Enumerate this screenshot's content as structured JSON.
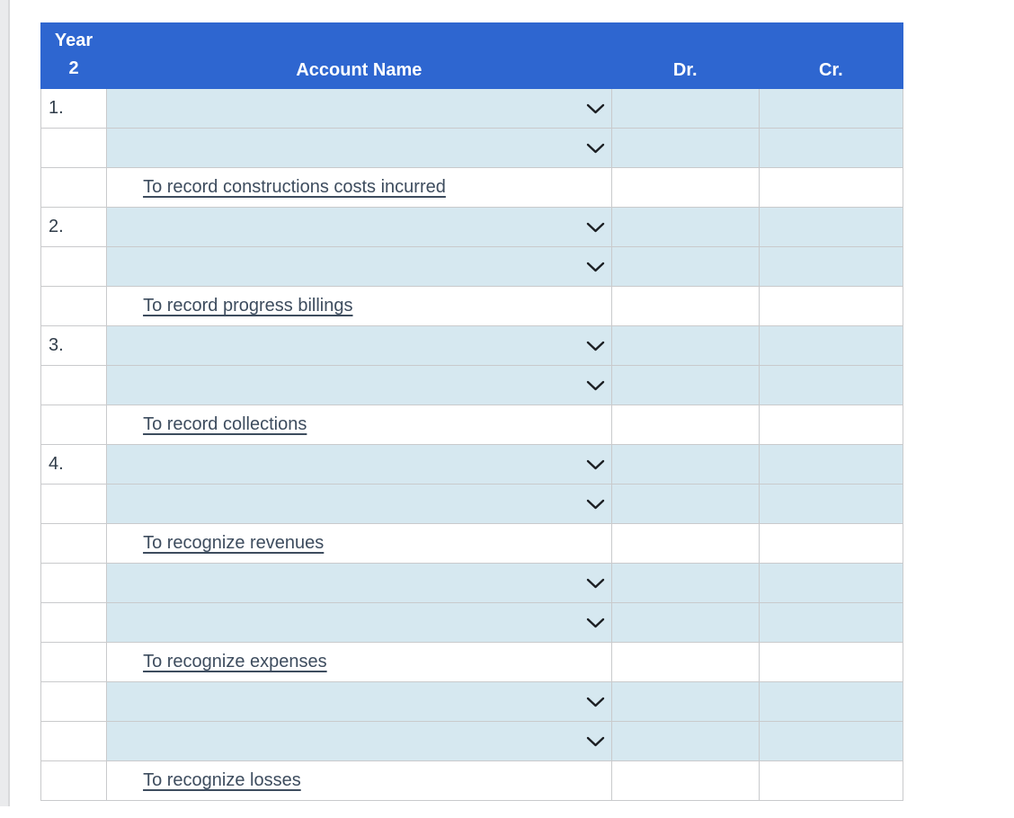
{
  "page": {
    "background_color": "#ffffff",
    "left_strip_color": "#eaebed"
  },
  "icons": {
    "chevron_down": "chevron-down"
  },
  "colors": {
    "header_blue": "#2e66d0",
    "editable_cell_blue": "#d6e8f0",
    "border_gray": "#c9cacc",
    "note_text": "#3d4c5e"
  },
  "table": {
    "headers": {
      "year_line1": "Year",
      "year_line2": "2",
      "account": "Account Name",
      "dr": "Dr.",
      "cr": "Cr."
    },
    "rows": [
      {
        "label": "1.",
        "kind": "select",
        "dr_value": "",
        "cr_value": ""
      },
      {
        "label": "",
        "kind": "select",
        "dr_value": "",
        "cr_value": ""
      },
      {
        "label": "",
        "kind": "note",
        "note": "To record constructions costs incurred"
      },
      {
        "label": "2.",
        "kind": "select",
        "dr_value": "",
        "cr_value": ""
      },
      {
        "label": "",
        "kind": "select",
        "dr_value": "",
        "cr_value": ""
      },
      {
        "label": "",
        "kind": "note",
        "note": "To record progress billings"
      },
      {
        "label": "3.",
        "kind": "select",
        "dr_value": "",
        "cr_value": ""
      },
      {
        "label": "",
        "kind": "select",
        "dr_value": "",
        "cr_value": ""
      },
      {
        "label": "",
        "kind": "note",
        "note": "To record collections"
      },
      {
        "label": "4.",
        "kind": "select",
        "dr_value": "",
        "cr_value": ""
      },
      {
        "label": "",
        "kind": "select",
        "dr_value": "",
        "cr_value": ""
      },
      {
        "label": "",
        "kind": "note",
        "note": "To recognize revenues"
      },
      {
        "label": "",
        "kind": "select",
        "dr_value": "",
        "cr_value": ""
      },
      {
        "label": "",
        "kind": "select",
        "dr_value": "",
        "cr_value": ""
      },
      {
        "label": "",
        "kind": "note",
        "note": "To recognize expenses"
      },
      {
        "label": "",
        "kind": "select",
        "dr_value": "",
        "cr_value": ""
      },
      {
        "label": "",
        "kind": "select",
        "dr_value": "",
        "cr_value": ""
      },
      {
        "label": "",
        "kind": "note",
        "note": "To recognize losses"
      }
    ]
  }
}
